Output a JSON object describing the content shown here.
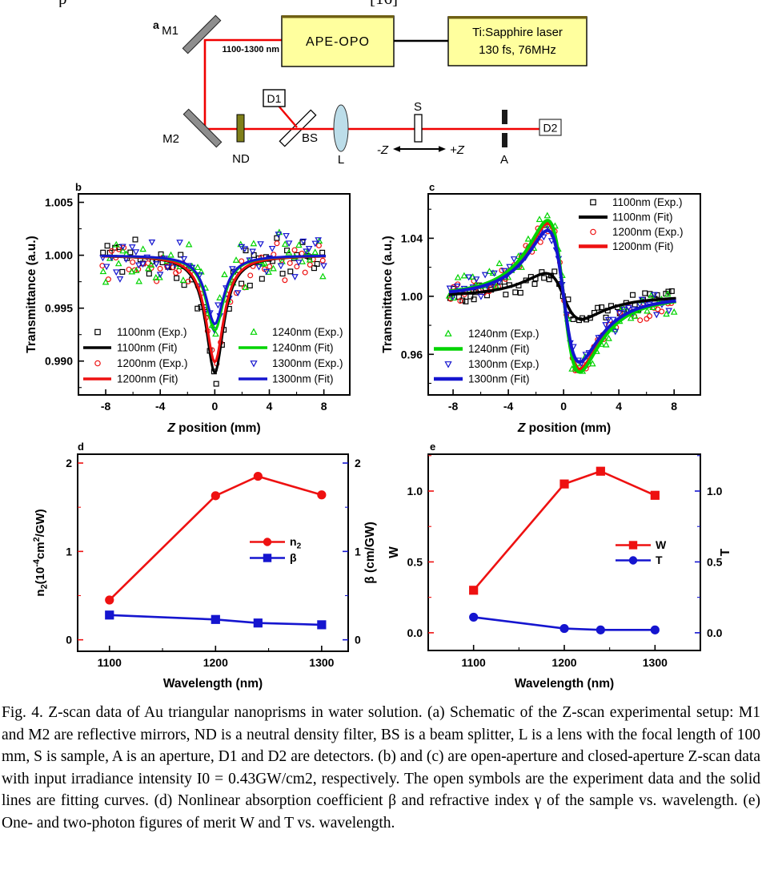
{
  "figure": {
    "top_fragment_left": "p",
    "top_fragment_right": "[16]"
  },
  "schematic": {
    "panel_label": "a",
    "labels": {
      "m1": "M1",
      "m2": "M2",
      "nd": "ND",
      "bs": "BS",
      "d1": "D1",
      "d2": "D2",
      "lens": "L",
      "sample": "S",
      "aperture": "A",
      "wavelength_range": "1100-1300 nm",
      "opo_box": "APE-OPO",
      "laser_line1": "Ti:Sapphire laser",
      "laser_line2": "130 fs, 76MHz",
      "z_neg": "-Z",
      "z_pos": "+Z"
    },
    "colors": {
      "beam": "#f00000",
      "box_fill": "#ffff9e",
      "box_top_edge": "#6f6014",
      "nd_fill": "#7f7f19",
      "lens_fill": "#bcdde9",
      "mirror_fill": "#8e8e8e"
    }
  },
  "chart_data": [
    {
      "id": "b",
      "panel_label": "b",
      "type": "scatter",
      "description": "Open-aperture Z-scan: transmittance dip at focus; open symbols experiment, solid lines fit",
      "xlabel": "Z position (mm)",
      "ylabel": "Transmittance (a.u.)",
      "xlim": [
        -10,
        9.9
      ],
      "ylim": [
        0.9868,
        1.0058
      ],
      "xticks": [
        {
          "v": -8,
          "label": "-8"
        },
        {
          "v": -4,
          "label": "-4"
        },
        {
          "v": 0,
          "label": "0"
        },
        {
          "v": 4,
          "label": "4"
        },
        {
          "v": 8,
          "label": "8"
        }
      ],
      "xminor": [
        -6,
        -2,
        2,
        6
      ],
      "yticks": [
        {
          "v": 0.99,
          "label": "0.990"
        },
        {
          "v": 0.995,
          "label": "0.995"
        },
        {
          "v": 1.0,
          "label": "1.000"
        },
        {
          "v": 1.005,
          "label": "1.005"
        }
      ],
      "yminor": [
        0.9875,
        0.9925,
        0.9975,
        1.0025
      ],
      "series": [
        {
          "label": "1100nm (Exp.)",
          "kind": "scatter",
          "marker": "square",
          "color": "#000000",
          "model": "open_aperture",
          "T_focus": 0.9889,
          "z0": 0.8,
          "noise": 0.0026,
          "seed": 11,
          "points": 55
        },
        {
          "label": "1100nm (Fit)",
          "kind": "line",
          "color": "#000000",
          "model": "open_aperture",
          "T_focus": 0.9889,
          "z0": 0.8,
          "width": 3
        },
        {
          "label": "1200nm (Exp.)",
          "kind": "scatter",
          "marker": "circle",
          "color": "#ee1111",
          "model": "open_aperture",
          "T_focus": 0.9899,
          "z0": 0.8,
          "noise": 0.0026,
          "seed": 12,
          "points": 55
        },
        {
          "label": "1200nm (Fit)",
          "kind": "line",
          "color": "#ee1111",
          "model": "open_aperture",
          "T_focus": 0.9899,
          "z0": 0.8,
          "width": 3
        },
        {
          "label": "1240nm (Exp.)",
          "kind": "scatter",
          "marker": "triangle-up",
          "color": "#00d400",
          "model": "open_aperture",
          "T_focus": 0.9929,
          "z0": 0.8,
          "noise": 0.0026,
          "seed": 13,
          "points": 55
        },
        {
          "label": "1240nm (Fit)",
          "kind": "line",
          "color": "#00d400",
          "model": "open_aperture",
          "T_focus": 0.9929,
          "z0": 0.8,
          "width": 3
        },
        {
          "label": "1300nm (Exp.)",
          "kind": "scatter",
          "marker": "triangle-down",
          "color": "#1515cf",
          "model": "open_aperture",
          "T_focus": 0.9935,
          "z0": 0.8,
          "noise": 0.0026,
          "seed": 14,
          "points": 55
        },
        {
          "label": "1300nm (Fit)",
          "kind": "line",
          "color": "#1515cf",
          "model": "open_aperture",
          "T_focus": 0.9935,
          "z0": 0.8,
          "width": 3
        }
      ]
    },
    {
      "id": "c",
      "panel_label": "c",
      "type": "scatter",
      "description": "Closed-aperture Z-scan: peak-valley dispersion shape; open symbols experiment, solid lines fit",
      "xlabel": "Z position (mm)",
      "ylabel": "Transmittance (a.u.)",
      "xlim": [
        -9.8,
        9.9
      ],
      "ylim": [
        0.932,
        1.0706
      ],
      "xticks": [
        {
          "v": -8,
          "label": "-8"
        },
        {
          "v": -4,
          "label": "-4"
        },
        {
          "v": 0,
          "label": "0"
        },
        {
          "v": 4,
          "label": "4"
        },
        {
          "v": 8,
          "label": "8"
        }
      ],
      "xminor": [
        -6,
        -2,
        2,
        6
      ],
      "yticks": [
        {
          "v": 0.96,
          "label": "0.96"
        },
        {
          "v": 1.0,
          "label": "1.00"
        },
        {
          "v": 1.04,
          "label": "1.04"
        }
      ],
      "yminor": [
        0.94,
        0.98,
        1.02,
        1.06
      ],
      "series": [
        {
          "label": "1100nm (Exp.)",
          "kind": "scatter",
          "marker": "square",
          "color": "#000000",
          "model": "closed_aperture",
          "T_peak": 1.016,
          "T_valley": 0.984,
          "z0": 1.5,
          "noise": 0.01,
          "seed": 21,
          "points": 60
        },
        {
          "label": "1100nm (Fit)",
          "kind": "line",
          "color": "#000000",
          "model": "closed_aperture",
          "T_peak": 1.016,
          "T_valley": 0.984,
          "z0": 1.5,
          "width": 3.5
        },
        {
          "label": "1200nm (Exp.)",
          "kind": "scatter",
          "marker": "circle",
          "color": "#ee1111",
          "model": "closed_aperture",
          "T_peak": 1.051,
          "T_valley": 0.948,
          "z0": 1.35,
          "noise": 0.01,
          "seed": 22,
          "points": 60
        },
        {
          "label": "1200nm (Fit)",
          "kind": "line",
          "color": "#ee1111",
          "model": "closed_aperture",
          "T_peak": 1.051,
          "T_valley": 0.948,
          "z0": 1.35,
          "width": 4
        },
        {
          "label": "1240nm (Exp.)",
          "kind": "scatter",
          "marker": "triangle-up",
          "color": "#00d400",
          "model": "closed_aperture",
          "T_peak": 1.053,
          "T_valley": 0.945,
          "z0": 1.35,
          "noise": 0.011,
          "seed": 23,
          "points": 60
        },
        {
          "label": "1240nm (Fit)",
          "kind": "line",
          "color": "#00d400",
          "model": "closed_aperture",
          "T_peak": 1.053,
          "T_valley": 0.945,
          "z0": 1.35,
          "width": 4
        },
        {
          "label": "1300nm (Exp.)",
          "kind": "scatter",
          "marker": "triangle-down",
          "color": "#1515cf",
          "model": "closed_aperture",
          "T_peak": 1.046,
          "T_valley": 0.954,
          "z0": 1.35,
          "noise": 0.01,
          "seed": 24,
          "points": 60
        },
        {
          "label": "1300nm (Fit)",
          "kind": "line",
          "color": "#1515cf",
          "model": "closed_aperture",
          "T_peak": 1.046,
          "T_valley": 0.954,
          "z0": 1.35,
          "width": 4
        }
      ]
    },
    {
      "id": "d",
      "panel_label": "d",
      "type": "line",
      "description": "Nonlinear refractive index n2 and absorption coefficient beta vs wavelength",
      "xlabel": "Wavelength (nm)",
      "ylabel_left_rich": [
        [
          "n",
          0
        ],
        [
          "2",
          -1
        ],
        [
          "(10",
          0
        ],
        [
          "-4",
          1
        ],
        [
          "cm",
          0
        ],
        [
          "2",
          1
        ],
        [
          "/GW)",
          0
        ]
      ],
      "ylabel_right": "β (cm/GW)",
      "axis_color_left": "#ee1111",
      "axis_color_right": "#1515cf",
      "x": [
        1100,
        1200,
        1240,
        1300
      ],
      "xlim": [
        1070,
        1325
      ],
      "ylim": [
        -0.13,
        2.1
      ],
      "xticks": [
        {
          "v": 1100,
          "label": "1100"
        },
        {
          "v": 1200,
          "label": "1200"
        },
        {
          "v": 1300,
          "label": "1300"
        }
      ],
      "xminor": [
        1150,
        1250
      ],
      "yticks": [
        {
          "v": 0,
          "label": "0"
        },
        {
          "v": 1,
          "label": "1"
        },
        {
          "v": 2,
          "label": "2"
        }
      ],
      "yminor": [
        0.5,
        1.5
      ],
      "series": [
        {
          "label": "n2",
          "label_rich": [
            [
              "n",
              0
            ],
            [
              "2",
              -1
            ]
          ],
          "color": "#ee1111",
          "marker": "circle",
          "filled": true,
          "values": [
            0.45,
            1.63,
            1.85,
            1.64
          ]
        },
        {
          "label": "β",
          "color": "#1515cf",
          "marker": "square",
          "filled": true,
          "values": [
            0.28,
            0.23,
            0.19,
            0.17
          ]
        }
      ]
    },
    {
      "id": "e",
      "panel_label": "e",
      "type": "line",
      "description": "One- and two-photon figures of merit W and T vs wavelength",
      "xlabel": "Wavelength (nm)",
      "ylabel_left": "W",
      "ylabel_right": "T",
      "axis_color_left": "#ee1111",
      "axis_color_right": "#1515cf",
      "x": [
        1100,
        1200,
        1240,
        1300
      ],
      "xlim": [
        1050,
        1350
      ],
      "ylim": [
        -0.125,
        1.26
      ],
      "xticks": [
        {
          "v": 1100,
          "label": "1100"
        },
        {
          "v": 1200,
          "label": "1200"
        },
        {
          "v": 1300,
          "label": "1300"
        }
      ],
      "xminor": [
        1150,
        1250
      ],
      "yticks": [
        {
          "v": 0,
          "label": "0.0"
        },
        {
          "v": 0.5,
          "label": "0.5"
        },
        {
          "v": 1.0,
          "label": "1.0"
        }
      ],
      "yminor": [
        0.25,
        0.75,
        1.25
      ],
      "series": [
        {
          "label": "W",
          "color": "#ee1111",
          "marker": "square",
          "filled": true,
          "values": [
            0.3,
            1.05,
            1.14,
            0.97
          ]
        },
        {
          "label": "T",
          "color": "#1515cf",
          "marker": "circle",
          "filled": true,
          "values": [
            0.11,
            0.03,
            0.02,
            0.02
          ]
        }
      ]
    }
  ],
  "caption": {
    "text": "Fig. 4. Z-scan data of Au triangular nanoprisms in water solution. (a) Schematic of the Z-scan experimental setup: M1 and M2 are reflective mirrors, ND is a neutral density filter, BS is a beam splitter, L is a lens with the focal length of 100 mm, S is sample, A is an aperture, D1 and D2 are detectors. (b) and (c) are open-aperture and closed-aperture Z-scan data with input irradiance intensity I0 = 0.43GW/cm2, respectively. The open symbols are the experiment data and the solid lines are fitting curves. (d) Nonlinear absorption coefficient β and refractive index γ of the sample vs. wavelength. (e) One- and two-photon figures of merit W and T vs. wavelength."
  }
}
